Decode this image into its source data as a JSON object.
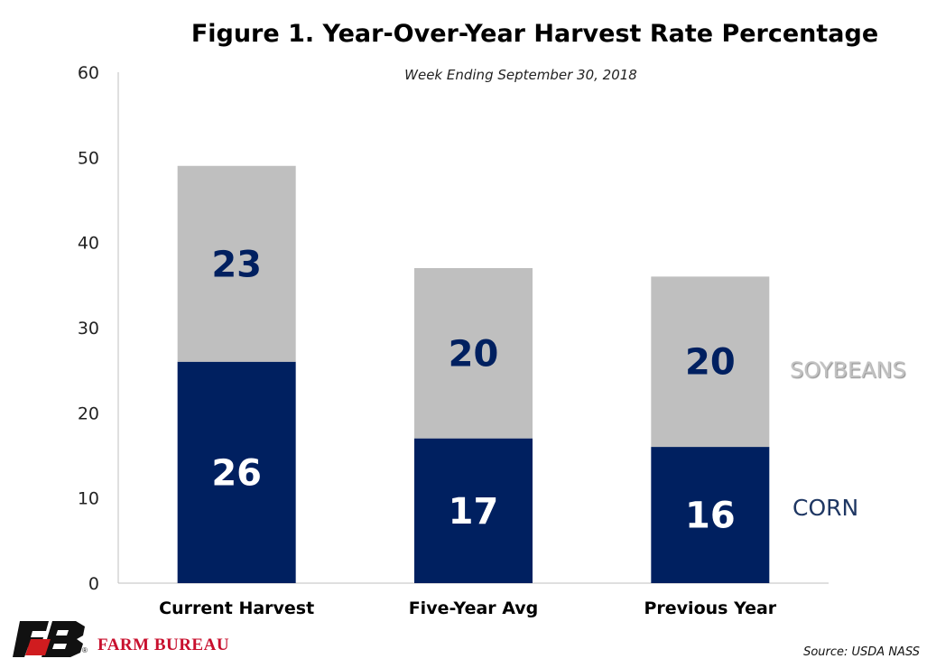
{
  "chart_data": {
    "type": "bar",
    "stacked": true,
    "title": "Figure 1. Year-Over-Year Harvest Rate Percentage",
    "subtitle": "Week Ending September 30, 2018",
    "categories": [
      "Current Harvest",
      "Five-Year Avg",
      "Previous Year"
    ],
    "series": [
      {
        "name": "CORN",
        "values": [
          26,
          17,
          16
        ],
        "color": "#002060"
      },
      {
        "name": "SOYBEANS",
        "values": [
          23,
          20,
          20
        ],
        "color": "#bfbfbf"
      }
    ],
    "ylim": [
      0,
      60
    ],
    "yticks": [
      0,
      10,
      20,
      30,
      40,
      50,
      60
    ],
    "grid": false,
    "legend": "right"
  },
  "footer": {
    "brand": "FARM BUREAU",
    "registered_mark": "®",
    "source": "Source: USDA NASS"
  }
}
